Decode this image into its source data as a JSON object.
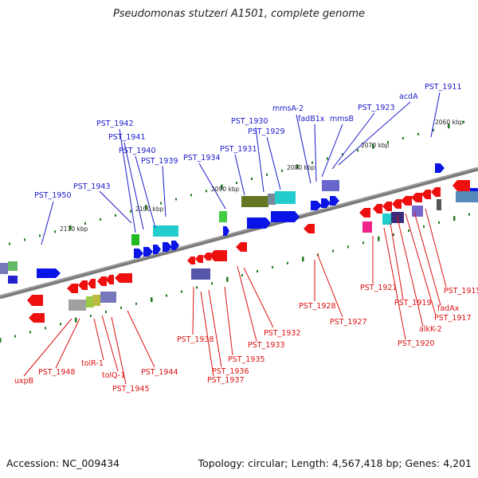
{
  "title": "Pseudomonas stutzeri A1501, complete genome",
  "footer": {
    "accession": "Accession: NC_009434",
    "summary": "Topology: circular; Length: 4,567,418 bp; Genes: 4,201"
  },
  "colors": {
    "top_label": "#1a1acc",
    "bottom_label": "#dd1111",
    "backbone": "#7a7a7a",
    "tick": "#1e7a1e",
    "plus_gene": "#0a14e6",
    "minus_gene": "#ee0f0f"
  },
  "kbp_labels": [
    "2060 kbp",
    "2070 kbp",
    "2080 kbp",
    "2090 kbp",
    "2100 kbp",
    "2110 kbp"
  ],
  "top_labels": [
    "PST_1911",
    "acdA",
    "PST_1923",
    "mmsB",
    "fadB1x",
    "mmsA-2",
    "PST_1929",
    "PST_1930",
    "PST_1931",
    "PST_1934",
    "PST_1939",
    "PST_1940",
    "PST_1941",
    "PST_1942",
    "PST_1943",
    "PST_1950"
  ],
  "bottom_labels": [
    "PST_1915",
    "fadAx",
    "PST_1917",
    "alkK-2",
    "PST_1920",
    "PST_1919",
    "PST_1921",
    "PST_1927",
    "PST_1928",
    "PST_1932",
    "PST_1933",
    "PST_1935",
    "PST_1936",
    "PST_1937",
    "PST_1938",
    "PST_1944",
    "PST_1945",
    "tolQ-1",
    "tolR-1",
    "PST_1948",
    "uxpB"
  ]
}
